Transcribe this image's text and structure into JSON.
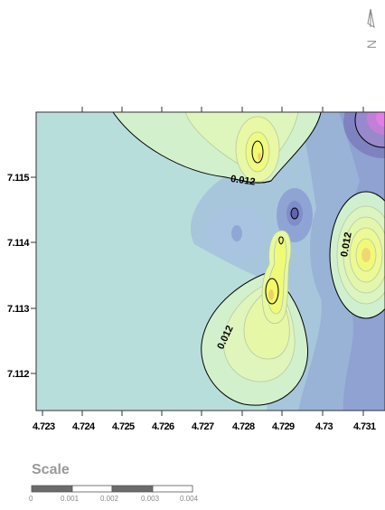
{
  "map": {
    "x_ticks": [
      "4.723",
      "4.724",
      "4.725",
      "4.726",
      "4.727",
      "4.728",
      "4.729",
      "4.73",
      "4.731"
    ],
    "y_ticks": [
      "7.115",
      "7.114",
      "7.113",
      "7.112"
    ],
    "contour_labels": [
      "0.012",
      "0.012",
      "0.012"
    ],
    "north_arrow_label": "N",
    "colors": {
      "background": "#b8dedb",
      "blue_low": "#9db8d8",
      "blue_mid": "#8ea4d3",
      "purple": "#7d83c2",
      "magenta": "#e27ee4",
      "light_green": "#d4f2cc",
      "yellow_green": "#e8f59c",
      "yellow": "#f0fa6a"
    }
  },
  "scale": {
    "title": "Scale",
    "labels": [
      "0",
      "0.001",
      "0.002",
      "0.003",
      "0.004"
    ]
  }
}
